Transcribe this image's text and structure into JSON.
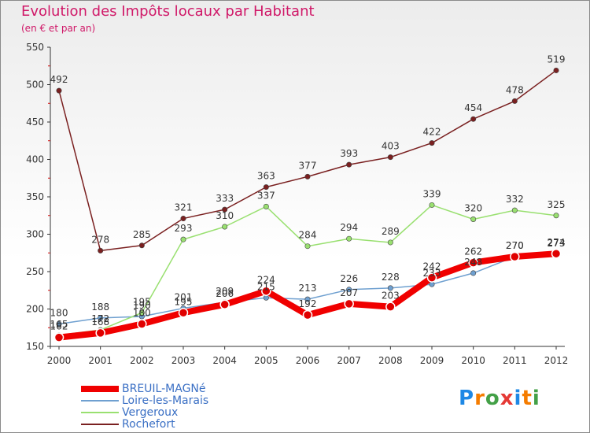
{
  "header": {
    "title": "Evolution des Impôts locaux par Habitant",
    "subtitle": "(en € et par an)"
  },
  "logo": {
    "text": "Proxiti",
    "colors": [
      "#1e88e5",
      "#f57c00",
      "#43a047",
      "#e53935",
      "#1e88e5",
      "#f57c00",
      "#43a047"
    ]
  },
  "chart_data": {
    "type": "line",
    "title": "Evolution des Impôts locaux par Habitant",
    "subtitle": "(en € et par an)",
    "xlabel": "",
    "ylabel": "",
    "ylim": [
      150,
      550
    ],
    "yticks": [
      150,
      200,
      250,
      300,
      350,
      400,
      450,
      500,
      550
    ],
    "grid": false,
    "legend_position": "bottom-left",
    "x": [
      "2000",
      "2001",
      "2002",
      "2003",
      "2004",
      "2005",
      "2006",
      "2007",
      "2008",
      "2009",
      "2010",
      "2011",
      "2012"
    ],
    "series": [
      {
        "name": "BREUIL-MAGNé",
        "color": "#f00000",
        "width": "thick",
        "values": [
          162,
          168,
          180,
          195,
          206,
          224,
          192,
          207,
          203,
          242,
          262,
          270,
          274
        ],
        "labels": [
          "162",
          "168",
          "180",
          "195",
          "206",
          "224",
          "192",
          "207",
          "203",
          "242",
          "262",
          "270",
          "274"
        ]
      },
      {
        "name": "Loire-les-Marais",
        "color": "#6fa0d0",
        "width": "thin",
        "values": [
          180,
          188,
          190,
          201,
          209,
          215,
          213,
          226,
          228,
          233,
          248,
          270,
          273
        ],
        "labels": [
          "180",
          "188",
          "190",
          "201",
          "209",
          "215",
          "213",
          "226",
          "228",
          "233",
          "248",
          "270",
          "273"
        ]
      },
      {
        "name": "Vergeroux",
        "color": "#99e070",
        "width": "thin",
        "values": [
          165,
          172,
          195,
          293,
          310,
          337,
          284,
          294,
          289,
          339,
          320,
          332,
          325
        ],
        "labels": [
          "165",
          "172",
          "195",
          "293",
          "310",
          "337",
          "284",
          "294",
          "289",
          "339",
          "320",
          "332",
          "325"
        ]
      },
      {
        "name": "Rochefort",
        "color": "#7a2020",
        "width": "thin",
        "values": [
          492,
          278,
          285,
          321,
          333,
          363,
          377,
          393,
          403,
          422,
          454,
          478,
          519
        ],
        "labels": [
          "492",
          "278",
          "285",
          "321",
          "333",
          "363",
          "377",
          "393",
          "403",
          "422",
          "454",
          "478",
          "519"
        ]
      }
    ]
  }
}
